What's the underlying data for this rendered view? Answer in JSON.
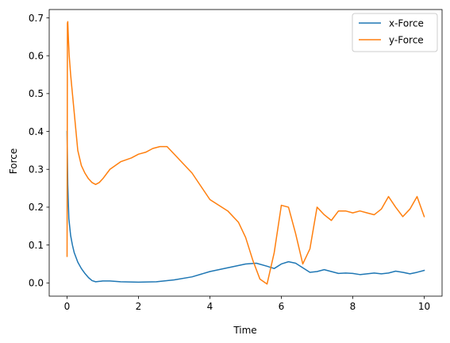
{
  "chart_data": {
    "type": "line",
    "title": "",
    "xlabel": "Time",
    "ylabel": "Force",
    "xlim": [
      -0.5,
      10.5
    ],
    "ylim": [
      -0.035,
      0.722
    ],
    "xticks": [
      0,
      2,
      4,
      6,
      8,
      10
    ],
    "xtick_labels": [
      "0",
      "2",
      "4",
      "6",
      "8",
      "10"
    ],
    "yticks": [
      0.0,
      0.1,
      0.2,
      0.3,
      0.4,
      0.5,
      0.6,
      0.7
    ],
    "ytick_labels": [
      "0.0",
      "0.1",
      "0.2",
      "0.3",
      "0.4",
      "0.5",
      "0.6",
      "0.7"
    ],
    "grid": false,
    "legend_position": "upper right",
    "series": [
      {
        "name": "x-Force",
        "color": "#1f77b4",
        "x": [
          0,
          0.02,
          0.05,
          0.1,
          0.15,
          0.2,
          0.3,
          0.4,
          0.5,
          0.6,
          0.7,
          0.8,
          0.9,
          1.0,
          1.2,
          1.5,
          2.0,
          2.5,
          3.0,
          3.5,
          4.0,
          4.5,
          5.0,
          5.3,
          5.6,
          5.8,
          6.0,
          6.2,
          6.4,
          6.6,
          6.8,
          7.0,
          7.2,
          7.4,
          7.6,
          7.8,
          8.0,
          8.2,
          8.4,
          8.6,
          8.8,
          9.0,
          9.2,
          9.4,
          9.6,
          9.8,
          10.0
        ],
        "y": [
          0.4,
          0.26,
          0.17,
          0.125,
          0.1,
          0.08,
          0.055,
          0.038,
          0.025,
          0.014,
          0.006,
          0.003,
          0.004,
          0.005,
          0.005,
          0.003,
          0.002,
          0.003,
          0.008,
          0.016,
          0.03,
          0.04,
          0.05,
          0.052,
          0.044,
          0.038,
          0.05,
          0.056,
          0.052,
          0.04,
          0.028,
          0.03,
          0.035,
          0.03,
          0.025,
          0.026,
          0.025,
          0.022,
          0.024,
          0.026,
          0.024,
          0.026,
          0.031,
          0.028,
          0.024,
          0.028,
          0.033
        ]
      },
      {
        "name": "y-Force",
        "color": "#ff7f0e",
        "x": [
          0,
          0.01,
          0.02,
          0.04,
          0.06,
          0.1,
          0.2,
          0.3,
          0.4,
          0.5,
          0.6,
          0.7,
          0.8,
          0.9,
          1.0,
          1.2,
          1.5,
          1.8,
          2.0,
          2.2,
          2.4,
          2.6,
          2.8,
          3.0,
          3.5,
          4.0,
          4.5,
          4.8,
          5.0,
          5.2,
          5.4,
          5.6,
          5.8,
          6.0,
          6.2,
          6.4,
          6.6,
          6.8,
          7.0,
          7.2,
          7.4,
          7.6,
          7.8,
          8.0,
          8.2,
          8.4,
          8.6,
          8.8,
          9.0,
          9.2,
          9.4,
          9.6,
          9.8,
          10.0
        ],
        "y": [
          0.07,
          0.686,
          0.69,
          0.64,
          0.6,
          0.55,
          0.45,
          0.35,
          0.31,
          0.29,
          0.275,
          0.265,
          0.26,
          0.265,
          0.275,
          0.3,
          0.32,
          0.33,
          0.34,
          0.345,
          0.355,
          0.36,
          0.36,
          0.34,
          0.29,
          0.22,
          0.19,
          0.16,
          0.12,
          0.06,
          0.01,
          -0.003,
          0.08,
          0.205,
          0.2,
          0.13,
          0.05,
          0.09,
          0.2,
          0.18,
          0.165,
          0.19,
          0.19,
          0.185,
          0.19,
          0.185,
          0.18,
          0.195,
          0.228,
          0.2,
          0.175,
          0.195,
          0.228,
          0.175
        ]
      }
    ]
  }
}
